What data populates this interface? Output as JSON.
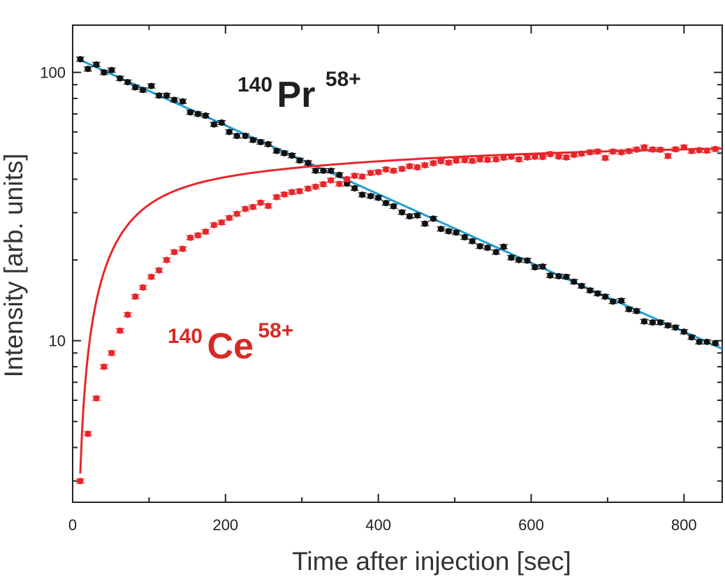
{
  "chart_data": {
    "type": "scatter",
    "title": "",
    "xlabel": "Time after injection [sec]",
    "ylabel": "Intensity [arb. units]",
    "xlim": [
      0,
      850
    ],
    "ylim": [
      2.5,
      150
    ],
    "yscale": "log",
    "x_ticks": [
      0,
      200,
      400,
      600,
      800
    ],
    "x_tick_labels": [
      "0",
      "200",
      "400",
      "600",
      "800"
    ],
    "y_ticks": [
      10,
      100
    ],
    "y_tick_labels": [
      "10",
      "100"
    ],
    "annotations": [
      {
        "id": "pr",
        "mass": "140",
        "element": "Pr",
        "charge": "58+",
        "color": "#231f20"
      },
      {
        "id": "ce",
        "mass": "140",
        "element": "Ce",
        "charge": "58+",
        "color": "#d62a24"
      }
    ],
    "series": [
      {
        "name": "140Pr58+ data",
        "color": "#111111",
        "kind": "points",
        "x": [
          10,
          20,
          31,
          41,
          51,
          62,
          72,
          82,
          92,
          103,
          113,
          123,
          133,
          144,
          154,
          164,
          174,
          185,
          195,
          205,
          215,
          226,
          236,
          246,
          256,
          267,
          277,
          287,
          297,
          308,
          318,
          328,
          338,
          349,
          359,
          369,
          379,
          390,
          400,
          410,
          420,
          431,
          441,
          451,
          461,
          472,
          482,
          492,
          502,
          513,
          523,
          533,
          543,
          554,
          564,
          574,
          584,
          595,
          605,
          615,
          625,
          636,
          646,
          656,
          666,
          677,
          687,
          697,
          707,
          718,
          728,
          738,
          748,
          759,
          769,
          779,
          789,
          800,
          810,
          820,
          830,
          841
        ],
        "y": [
          112,
          103,
          107,
          100,
          102,
          95,
          92,
          88,
          86,
          89,
          82,
          82,
          79,
          78,
          71,
          70,
          69,
          64,
          65,
          60,
          58,
          58,
          56,
          55,
          54,
          51,
          50,
          49,
          47,
          46,
          43,
          43,
          43,
          41.5,
          38.5,
          37,
          35,
          34.6,
          34.1,
          32.6,
          31.7,
          30.1,
          29.1,
          29.3,
          27.3,
          28.5,
          26.1,
          25.6,
          25.3,
          24.3,
          23.5,
          22.5,
          22.2,
          21.4,
          22.4,
          20.4,
          20.0,
          19.9,
          18.8,
          18.9,
          17.5,
          17.4,
          17.3,
          16.6,
          16.0,
          15.4,
          15.0,
          14.6,
          14.0,
          14.1,
          13.1,
          12.9,
          11.8,
          11.7,
          11.7,
          11.4,
          11.2,
          10.8,
          10.3,
          9.9,
          9.9,
          9.8
        ]
      },
      {
        "name": "140Ce58+ data",
        "color": "#e8262a",
        "kind": "points",
        "x": [
          10,
          20,
          31,
          41,
          51,
          62,
          72,
          82,
          92,
          103,
          113,
          123,
          133,
          144,
          154,
          164,
          174,
          185,
          195,
          205,
          215,
          226,
          236,
          246,
          256,
          267,
          277,
          287,
          297,
          308,
          318,
          328,
          338,
          349,
          359,
          369,
          379,
          390,
          400,
          410,
          420,
          431,
          441,
          451,
          461,
          472,
          482,
          492,
          502,
          513,
          523,
          533,
          543,
          554,
          564,
          574,
          584,
          595,
          605,
          615,
          625,
          636,
          646,
          656,
          666,
          677,
          687,
          697,
          707,
          718,
          728,
          738,
          748,
          759,
          769,
          779,
          789,
          800,
          810,
          820,
          830,
          841
        ],
        "y": [
          3.0,
          4.5,
          6.1,
          8.0,
          9.0,
          10.9,
          12.5,
          14.6,
          15.8,
          17.3,
          18.3,
          20.0,
          21.4,
          22.0,
          24.2,
          24.7,
          25.5,
          27.0,
          27.6,
          28.7,
          29.7,
          31.0,
          31.5,
          32.7,
          31.8,
          34.3,
          35.1,
          35.8,
          36.1,
          36.9,
          37.5,
          38.3,
          39.6,
          38.4,
          40.0,
          41.2,
          40.9,
          42.2,
          42.5,
          43.5,
          43.0,
          43.7,
          44.7,
          44.3,
          45.1,
          45.9,
          46.7,
          46.1,
          46.9,
          47.1,
          46.8,
          47.4,
          47.2,
          47.4,
          48.1,
          48.5,
          47.4,
          48.2,
          48.5,
          48.4,
          49.6,
          48.6,
          48.2,
          49.3,
          49.8,
          50.4,
          50.7,
          48.0,
          50.7,
          50.4,
          50.9,
          51.6,
          52.6,
          51.6,
          51.5,
          48.8,
          51.7,
          52.6,
          50.9,
          51.3,
          51.1,
          51.8
        ]
      },
      {
        "name": "140Pr58+ fit",
        "color": "#1f9fd5",
        "kind": "fit",
        "model": "exp_decay",
        "params": {
          "A": 114.5,
          "lambda": 0.00295
        },
        "range": [
          8,
          850
        ]
      },
      {
        "name": "140Ce58+ fit",
        "color": "#e8262a",
        "kind": "fit",
        "model": "growth",
        "params": {
          "C": 52,
          "x0": 5,
          "lambda": 0.00295,
          "k": 0.028
        },
        "range": [
          10,
          850
        ]
      }
    ]
  }
}
